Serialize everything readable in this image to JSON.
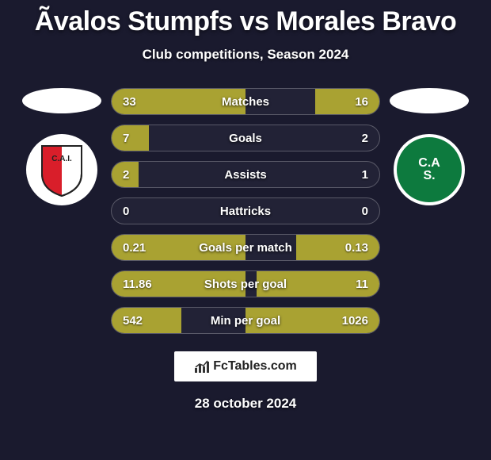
{
  "title": "Ãvalos Stumpfs vs Morales Bravo",
  "subtitle": "Club competitions, Season 2024",
  "date": "28 october 2024",
  "branding_text": "FcTables.com",
  "colors": {
    "background": "#1a1a2e",
    "bar_left": "#a9a232",
    "bar_right": "#a9a232",
    "ellipse_left": "#ffffff",
    "ellipse_right": "#ffffff",
    "row_bg": "rgba(255,255,255,0.04)"
  },
  "typography": {
    "title_fontsize": 34,
    "subtitle_fontsize": 17,
    "label_fontsize": 15,
    "value_fontsize": 15,
    "date_fontsize": 17
  },
  "teams": {
    "left": {
      "name": "Independiente",
      "logo_bg": "#ffffff",
      "shield_color": "#d91e2a"
    },
    "right": {
      "name": "Sarmiento",
      "logo_bg": "#0d7a3e",
      "initials": "C.A S."
    }
  },
  "stats": [
    {
      "label": "Matches",
      "left_val": "33",
      "right_val": "16",
      "left_pct": 50,
      "right_pct": 24
    },
    {
      "label": "Goals",
      "left_val": "7",
      "right_val": "2",
      "left_pct": 14,
      "right_pct": 0
    },
    {
      "label": "Assists",
      "left_val": "2",
      "right_val": "1",
      "left_pct": 10,
      "right_pct": 0
    },
    {
      "label": "Hattricks",
      "left_val": "0",
      "right_val": "0",
      "left_pct": 0,
      "right_pct": 0
    },
    {
      "label": "Goals per match",
      "left_val": "0.21",
      "right_val": "0.13",
      "left_pct": 50,
      "right_pct": 31
    },
    {
      "label": "Shots per goal",
      "left_val": "11.86",
      "right_val": "11",
      "left_pct": 50,
      "right_pct": 46
    },
    {
      "label": "Min per goal",
      "left_val": "542",
      "right_val": "1026",
      "left_pct": 26,
      "right_pct": 50
    }
  ]
}
